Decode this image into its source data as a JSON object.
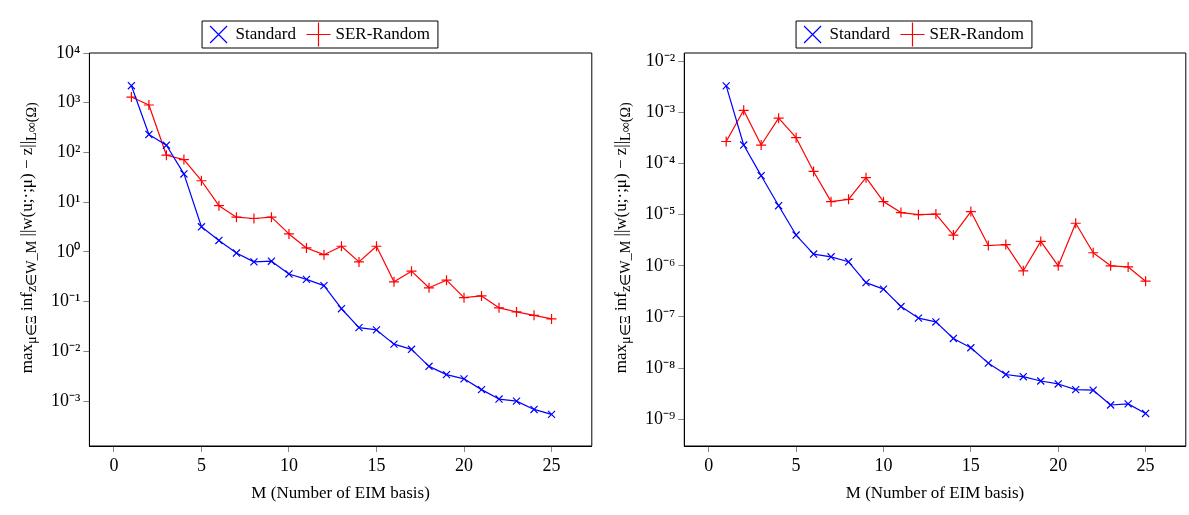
{
  "chart_data": [
    {
      "type": "line",
      "xlabel": "M (Number of EIM basis)",
      "ylabel": "max$_{μ∈Ξ}$ inf$_{z∈W_M}$ ||w(u;·;μ) − z||$_{L∞(Ω)}$",
      "log": "y",
      "grid": false,
      "legend": "top",
      "line_style": "solid",
      "x": [
        1,
        2,
        3,
        4,
        5,
        6,
        7,
        8,
        9,
        10,
        11,
        12,
        13,
        14,
        15,
        16,
        17,
        18,
        19,
        20,
        21,
        22,
        23,
        24,
        25
      ],
      "xlim": [
        -1.4,
        27.3
      ],
      "xticks": [
        0,
        5,
        10,
        15,
        20,
        25
      ],
      "ylim": [
        0.000125,
        10000
      ],
      "yticks": [
        {
          "value": 0.001,
          "label": "10⁻³"
        },
        {
          "value": 0.01,
          "label": "10⁻²"
        },
        {
          "value": 0.1,
          "label": "10⁻¹"
        },
        {
          "value": 1,
          "label": "10⁰"
        },
        {
          "value": 10,
          "label": "10¹"
        },
        {
          "value": 100,
          "label": "10²"
        },
        {
          "value": 1000,
          "label": "10³"
        },
        {
          "value": 10000,
          "label": "10⁴"
        }
      ],
      "series": [
        {
          "name": "Standard",
          "color": "#0000ff",
          "marker": "x",
          "values": [
            2200,
            230,
            140,
            37,
            3.2,
            1.7,
            0.95,
            0.63,
            0.65,
            0.36,
            0.28,
            0.21,
            0.072,
            0.03,
            0.027,
            0.014,
            0.011,
            0.005,
            0.0034,
            0.0028,
            0.0017,
            0.0011,
            0.001,
            0.00068,
            0.00054
          ]
        },
        {
          "name": "SER-Random",
          "color": "#ff0000",
          "marker": "cross",
          "values": [
            1300,
            900,
            88,
            72,
            27,
            8.5,
            5,
            4.7,
            5,
            2.3,
            1.2,
            0.88,
            1.3,
            0.63,
            1.3,
            0.25,
            0.41,
            0.19,
            0.27,
            0.12,
            0.13,
            0.075,
            0.062,
            0.053,
            0.045
          ]
        }
      ]
    },
    {
      "type": "line",
      "xlabel": "M (Number of EIM basis)",
      "ylabel": "max$_{μ∈Ξ}$ inf$_{z∈W_M}$ ||w(u;·;μ) − z||$_{L∞(Ω)}$",
      "log": "y",
      "grid": false,
      "legend": "top",
      "line_style": "solid",
      "x": [
        1,
        2,
        3,
        4,
        5,
        6,
        7,
        8,
        9,
        10,
        11,
        12,
        13,
        14,
        15,
        16,
        17,
        18,
        19,
        20,
        21,
        22,
        23,
        24,
        25
      ],
      "xlim": [
        -1.4,
        27.3
      ],
      "xticks": [
        0,
        5,
        10,
        15,
        20,
        25
      ],
      "ylim": [
        3e-10,
        0.0145
      ],
      "yticks": [
        {
          "value": 1e-09,
          "label": "10⁻⁹"
        },
        {
          "value": 1e-08,
          "label": "10⁻⁸"
        },
        {
          "value": 1e-07,
          "label": "10⁻⁷"
        },
        {
          "value": 1e-06,
          "label": "10⁻⁶"
        },
        {
          "value": 1e-05,
          "label": "10⁻⁵"
        },
        {
          "value": 0.0001,
          "label": "10⁻⁴"
        },
        {
          "value": 0.001,
          "label": "10⁻³"
        },
        {
          "value": 0.01,
          "label": "10⁻²"
        }
      ],
      "series": [
        {
          "name": "Standard",
          "color": "#0000ff",
          "marker": "x",
          "values": [
            0.0033,
            0.00023,
            5.8e-05,
            1.5e-05,
            4e-06,
            1.7e-06,
            1.5e-06,
            1.2e-06,
            4.7e-07,
            3.5e-07,
            1.6e-07,
            9.5e-08,
            8e-08,
            3.8e-08,
            2.5e-08,
            1.25e-08,
            7.5e-09,
            6.8e-09,
            5.6e-09,
            4.9e-09,
            3.8e-09,
            3.7e-09,
            1.9e-09,
            2e-09,
            1.3e-09
          ]
        },
        {
          "name": "SER-Random",
          "color": "#ff0000",
          "marker": "cross",
          "values": [
            0.00027,
            0.0011,
            0.00023,
            0.00077,
            0.00032,
            7e-05,
            1.8e-05,
            2e-05,
            5.3e-05,
            1.8e-05,
            1.1e-05,
            1e-05,
            1.03e-05,
            4e-06,
            1.15e-05,
            2.5e-06,
            2.6e-06,
            8e-07,
            3e-06,
            1e-06,
            6.8e-06,
            1.8e-06,
            1e-06,
            9.5e-07,
            5e-07
          ]
        }
      ]
    }
  ]
}
